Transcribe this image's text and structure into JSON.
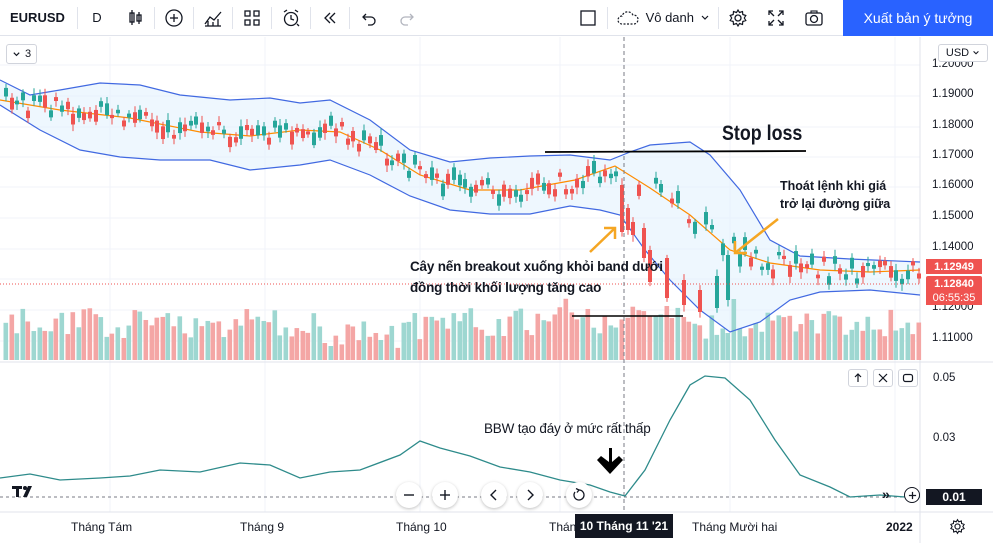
{
  "toolbar": {
    "symbol": "EURUSD",
    "interval": "D",
    "layout_name": "Vô danh",
    "publish_label": "Xuất bản ý tưởng"
  },
  "chart": {
    "legend_count": "3",
    "currency": "USD",
    "price_axis_labels": [
      "1.20000",
      "1.19000",
      "1.18000",
      "1.17000",
      "1.16000",
      "1.15000",
      "1.14000",
      "1.12000",
      "1.11000"
    ],
    "last_price": "1.12949",
    "close_price": "1.12840",
    "countdown": "06:55:35",
    "colors": {
      "up": "#26a69a",
      "down": "#ef5350",
      "band": "#4169e1",
      "basis": "#ff8c00",
      "bbw": "#2e8b8b",
      "publish": "#2962ff"
    }
  },
  "annotations": {
    "stop_loss": "Stop loss",
    "exit_line1": "Thoát lệnh khi giá",
    "exit_line2": "trở lại đường giữa",
    "breakout_line1": "Cây nến breakout xuống khỏi band dưới",
    "breakout_line2": "đồng thời khối lượng tăng cao",
    "bbw_note": "BBW tạo đáy ở mức rất thấp"
  },
  "bbw_pane": {
    "axis_labels": [
      "0.05",
      "0.03"
    ],
    "current_value": "0.01"
  },
  "time_axis": {
    "labels": [
      "Tháng Tám",
      "Tháng 9",
      "Tháng 10",
      "Thán",
      "Tháng Mười hai",
      "2022"
    ],
    "cursor_label": "10 Tháng 11 '21"
  },
  "logo_text": "TV"
}
